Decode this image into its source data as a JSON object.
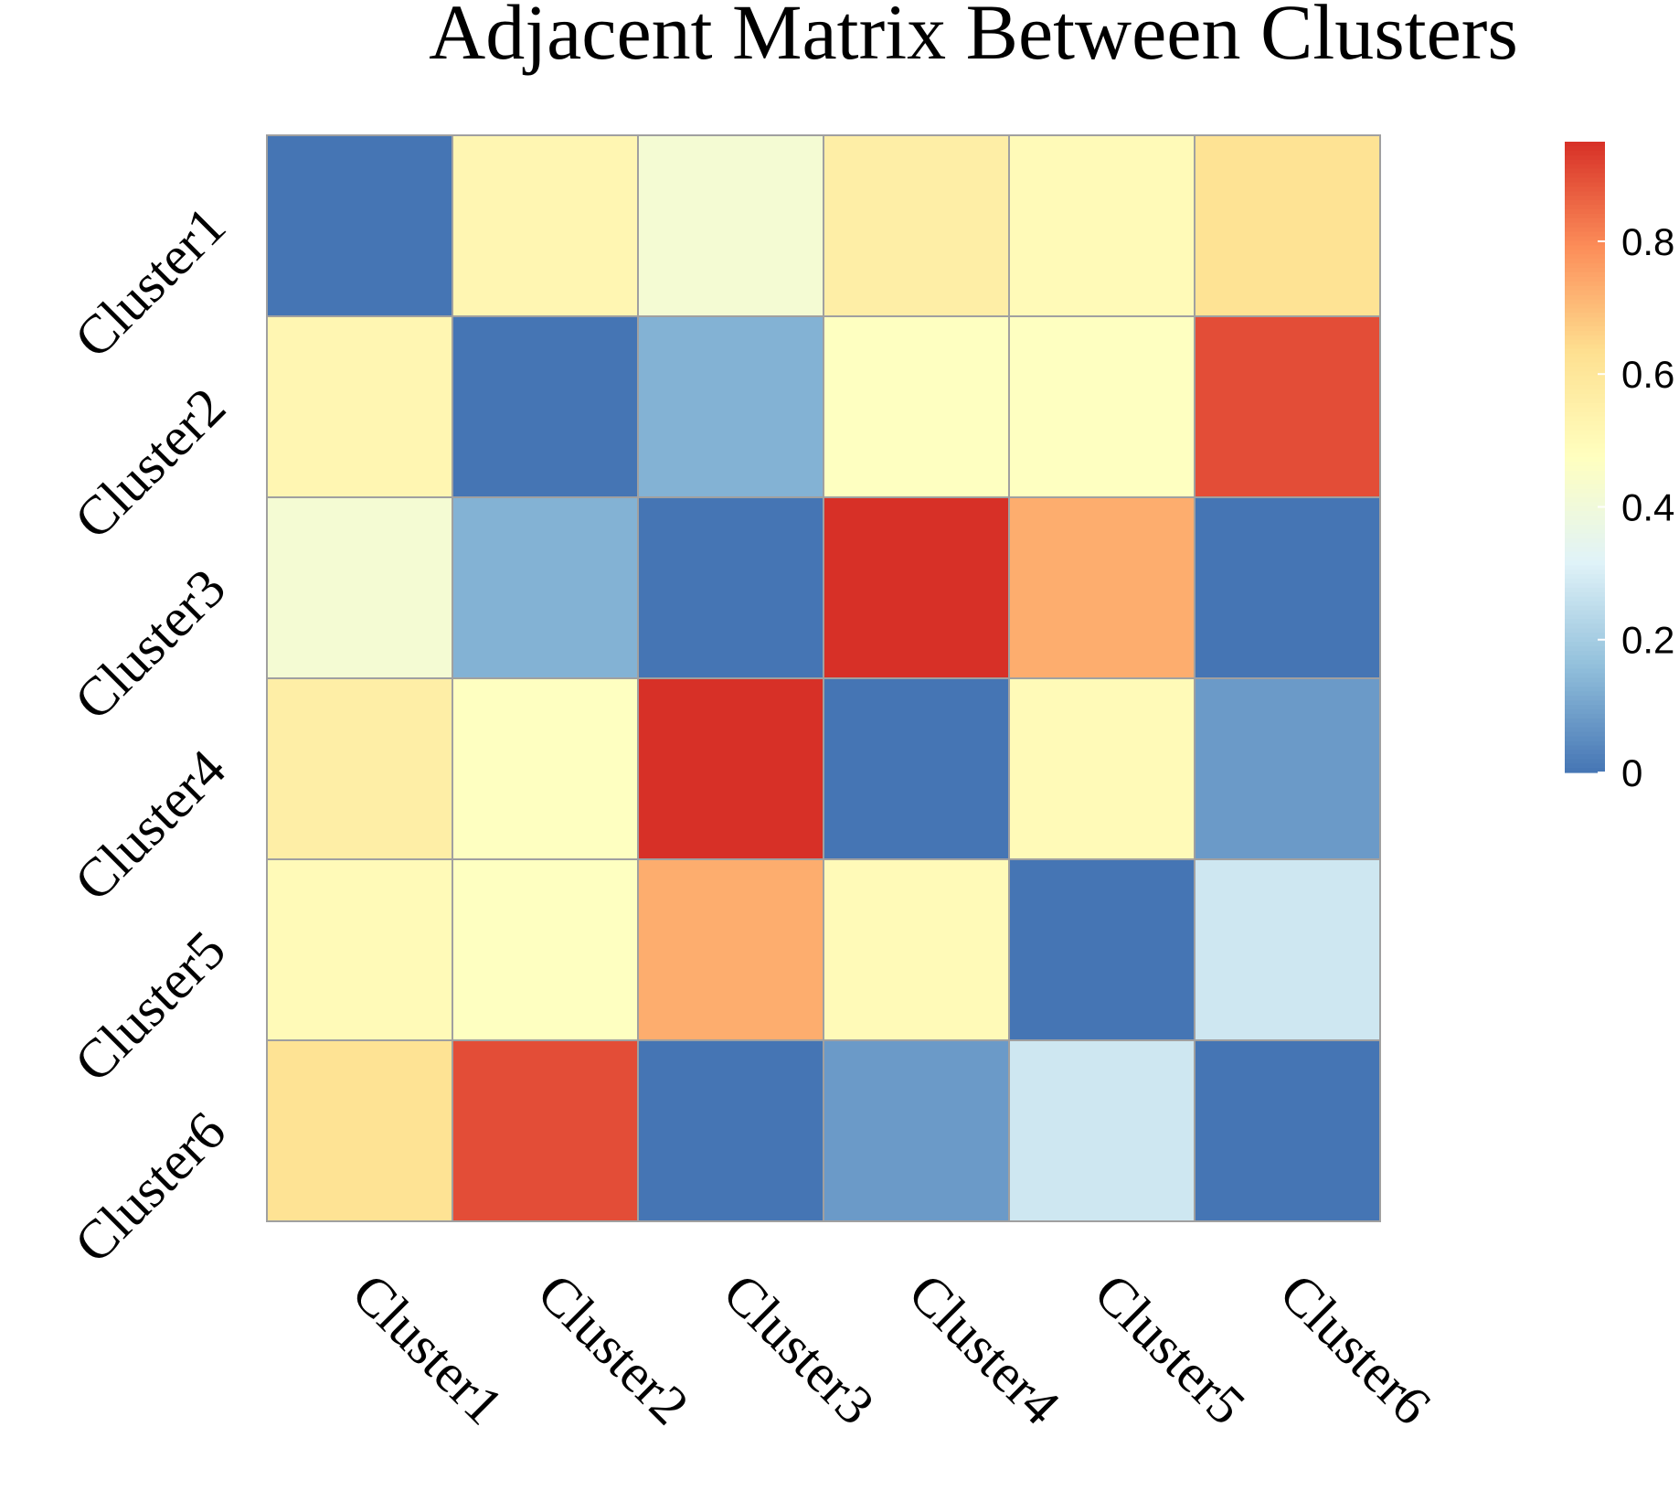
{
  "chart_data": {
    "type": "heatmap",
    "title": "Adjacent Matrix Between Clusters",
    "rows": [
      "Cluster1",
      "Cluster2",
      "Cluster3",
      "Cluster4",
      "Cluster5",
      "Cluster6"
    ],
    "columns": [
      "Cluster1",
      "Cluster2",
      "Cluster3",
      "Cluster4",
      "Cluster5",
      "Cluster6"
    ],
    "values": [
      [
        0.0,
        0.52,
        0.42,
        0.56,
        0.5,
        0.62
      ],
      [
        0.52,
        0.0,
        0.13,
        0.47,
        0.47,
        0.9
      ],
      [
        0.42,
        0.13,
        0.0,
        0.95,
        0.73,
        0.0
      ],
      [
        0.56,
        0.47,
        0.95,
        0.0,
        0.5,
        0.08
      ],
      [
        0.5,
        0.47,
        0.73,
        0.5,
        0.0,
        0.28
      ],
      [
        0.62,
        0.9,
        0.0,
        0.08,
        0.28,
        0.0
      ]
    ],
    "legend": {
      "range": [
        0,
        0.95
      ],
      "ticks": [
        0,
        0.2,
        0.4,
        0.6,
        0.8
      ],
      "tick_labels": [
        "0",
        "0.2",
        "0.4",
        "0.6",
        "0.8"
      ],
      "placement": "right"
    },
    "colormap": [
      "#4575b4",
      "#91bfdb",
      "#e0f3f8",
      "#ffffbf",
      "#fee090",
      "#fc8d59",
      "#d73027"
    ],
    "cell_border_color": "#a0a0a0"
  }
}
